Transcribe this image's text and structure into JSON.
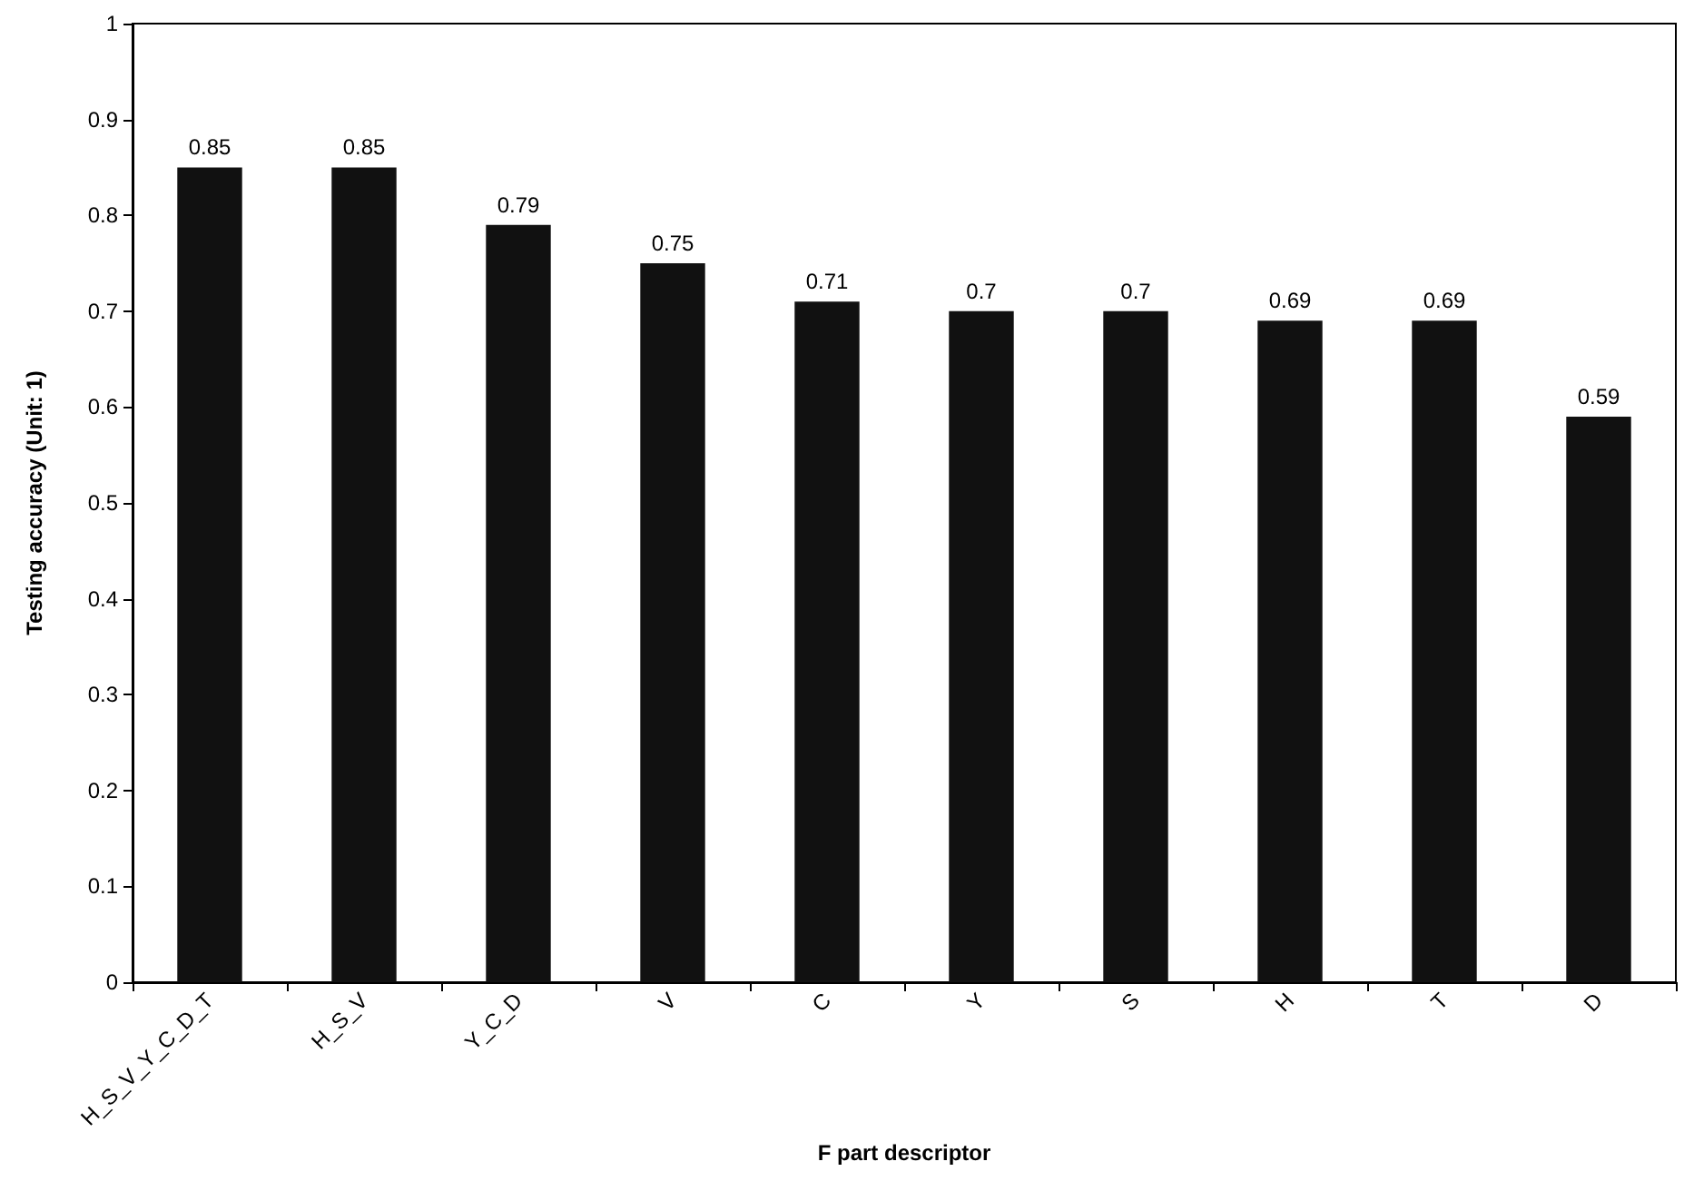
{
  "chart_data": {
    "type": "bar",
    "xlabel": "F part descriptor",
    "ylabel": "Testing accuracy (Unit: 1)",
    "categories": [
      "H_S_V_Y_C_D_T",
      "H_S_V",
      "Y_C_D",
      "V",
      "C",
      "Y",
      "S",
      "H",
      "T",
      "D"
    ],
    "values": [
      0.85,
      0.85,
      0.79,
      0.75,
      0.71,
      0.7,
      0.7,
      0.69,
      0.69,
      0.59
    ],
    "color": "#111111",
    "data_labels": true,
    "grid": false,
    "ylim": [
      0,
      1
    ],
    "yticks": [
      0,
      0.1,
      0.2,
      0.3,
      0.4,
      0.5,
      0.6,
      0.7,
      0.8,
      0.9,
      1
    ]
  }
}
